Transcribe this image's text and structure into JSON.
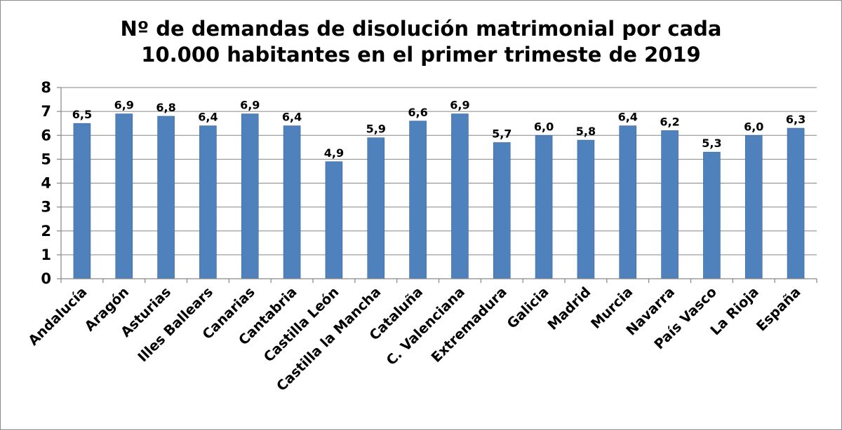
{
  "chart_data": {
    "type": "bar",
    "title_lines": [
      "Nº de demandas de disolución matrimonial por cada",
      "10.000 habitantes en el primer trimeste de 2019"
    ],
    "categories": [
      "Andalucía",
      "Aragón",
      "Asturias",
      "Illes Ballears",
      "Canarias",
      "Cantabria",
      "Castilla León",
      "Castilla la Mancha",
      "Cataluña",
      "C. Valenciana",
      "Extremadura",
      "Galicia",
      "Madrid",
      "Murcia",
      "Navarra",
      "País Vasco",
      "La Rioja",
      "España"
    ],
    "values": [
      6.5,
      6.9,
      6.8,
      6.4,
      6.9,
      6.4,
      4.9,
      5.9,
      6.6,
      6.9,
      5.7,
      6.0,
      5.8,
      6.4,
      6.2,
      5.3,
      6.0,
      6.3
    ],
    "value_labels": [
      "6,5",
      "6,9",
      "6,8",
      "6,4",
      "6,9",
      "6,4",
      "4,9",
      "5,9",
      "6,6",
      "6,9",
      "5,7",
      "6,0",
      "5,8",
      "6,4",
      "6,2",
      "5,3",
      "6,0",
      "6,3"
    ],
    "ylim": [
      0,
      8
    ],
    "yticks": [
      "0",
      "1",
      "2",
      "3",
      "4",
      "5",
      "6",
      "7",
      "8"
    ],
    "grid": true,
    "legend": "none",
    "bar_color": "#4F81BD",
    "bar_edge_color": "#3A6796"
  }
}
